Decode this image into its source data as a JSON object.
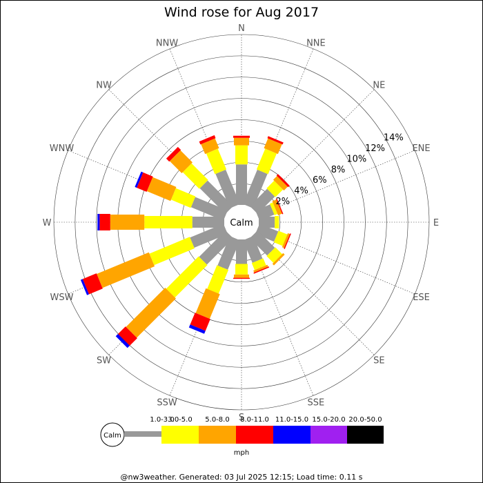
{
  "chart_data": {
    "type": "wind-rose",
    "title": "Wind rose for Aug 2017",
    "directions": [
      "N",
      "NNE",
      "NE",
      "ENE",
      "E",
      "ESE",
      "SE",
      "SSE",
      "S",
      "SSW",
      "SW",
      "WSW",
      "W",
      "WNW",
      "NW",
      "NNW"
    ],
    "radial_ticks": [
      "2%",
      "4%",
      "6%",
      "8%",
      "10%",
      "12%",
      "14%"
    ],
    "radial_values": [
      2,
      4,
      6,
      8,
      10,
      12,
      14
    ],
    "calm_label": "Calm",
    "speed_unit": "mph",
    "speed_bins": [
      {
        "label": "1.0-3.0",
        "color": "#999999"
      },
      {
        "label": "3.0-5.0",
        "color": "#ffff00"
      },
      {
        "label": "5.0-8.0",
        "color": "#ffa500"
      },
      {
        "label": "8.0-11.0",
        "color": "#ff0000"
      },
      {
        "label": "11.0-15.0",
        "color": "#0000ff"
      },
      {
        "label": "15.0-20.0",
        "color": "#a020f0"
      },
      {
        "label": "20.0-50.0",
        "color": "#000000"
      }
    ],
    "series_cumulative_percent": [
      [
        3.8,
        5.6,
        6.3,
        6.5,
        6.5,
        6.5,
        6.5
      ],
      [
        3.5,
        5.6,
        6.6,
        6.8,
        6.8,
        6.8,
        6.8
      ],
      [
        2.3,
        3.3,
        3.8,
        4.0,
        4.0,
        4.0,
        4.0
      ],
      [
        1.5,
        1.8,
        2.2,
        2.3,
        2.3,
        2.3,
        2.3
      ],
      [
        1.5,
        1.9,
        1.9,
        1.9,
        1.9,
        1.9,
        1.9
      ],
      [
        1.9,
        2.8,
        3.0,
        3.1,
        3.1,
        3.1,
        3.1
      ],
      [
        2.3,
        3.2,
        3.4,
        3.4,
        3.4,
        3.4,
        3.4
      ],
      [
        2.3,
        3.0,
        3.2,
        3.3,
        3.3,
        3.3,
        3.3
      ],
      [
        2.3,
        3.3,
        3.6,
        3.7,
        3.7,
        3.7,
        3.7
      ],
      [
        3.0,
        5.4,
        7.9,
        9.1,
        9.4,
        9.4,
        9.4
      ],
      [
        3.5,
        7.8,
        13.0,
        14.0,
        14.3,
        14.3,
        14.3
      ],
      [
        3.4,
        7.5,
        12.8,
        14.2,
        14.4,
        14.4,
        14.4
      ],
      [
        3.0,
        7.5,
        10.7,
        11.7,
        11.9,
        11.9,
        11.9
      ],
      [
        3.3,
        5.3,
        7.7,
        8.7,
        8.9,
        8.9,
        8.9
      ],
      [
        3.4,
        5.6,
        7.2,
        7.6,
        7.6,
        7.6,
        7.6
      ],
      [
        3.5,
        5.6,
        6.6,
        6.9,
        6.9,
        6.9,
        6.9
      ]
    ],
    "max_percent": 16,
    "grid": true
  },
  "footer": {
    "text": "@nw3weather. Generated: 03 Jul 2025 12:15; Load time: 0.11 s"
  }
}
